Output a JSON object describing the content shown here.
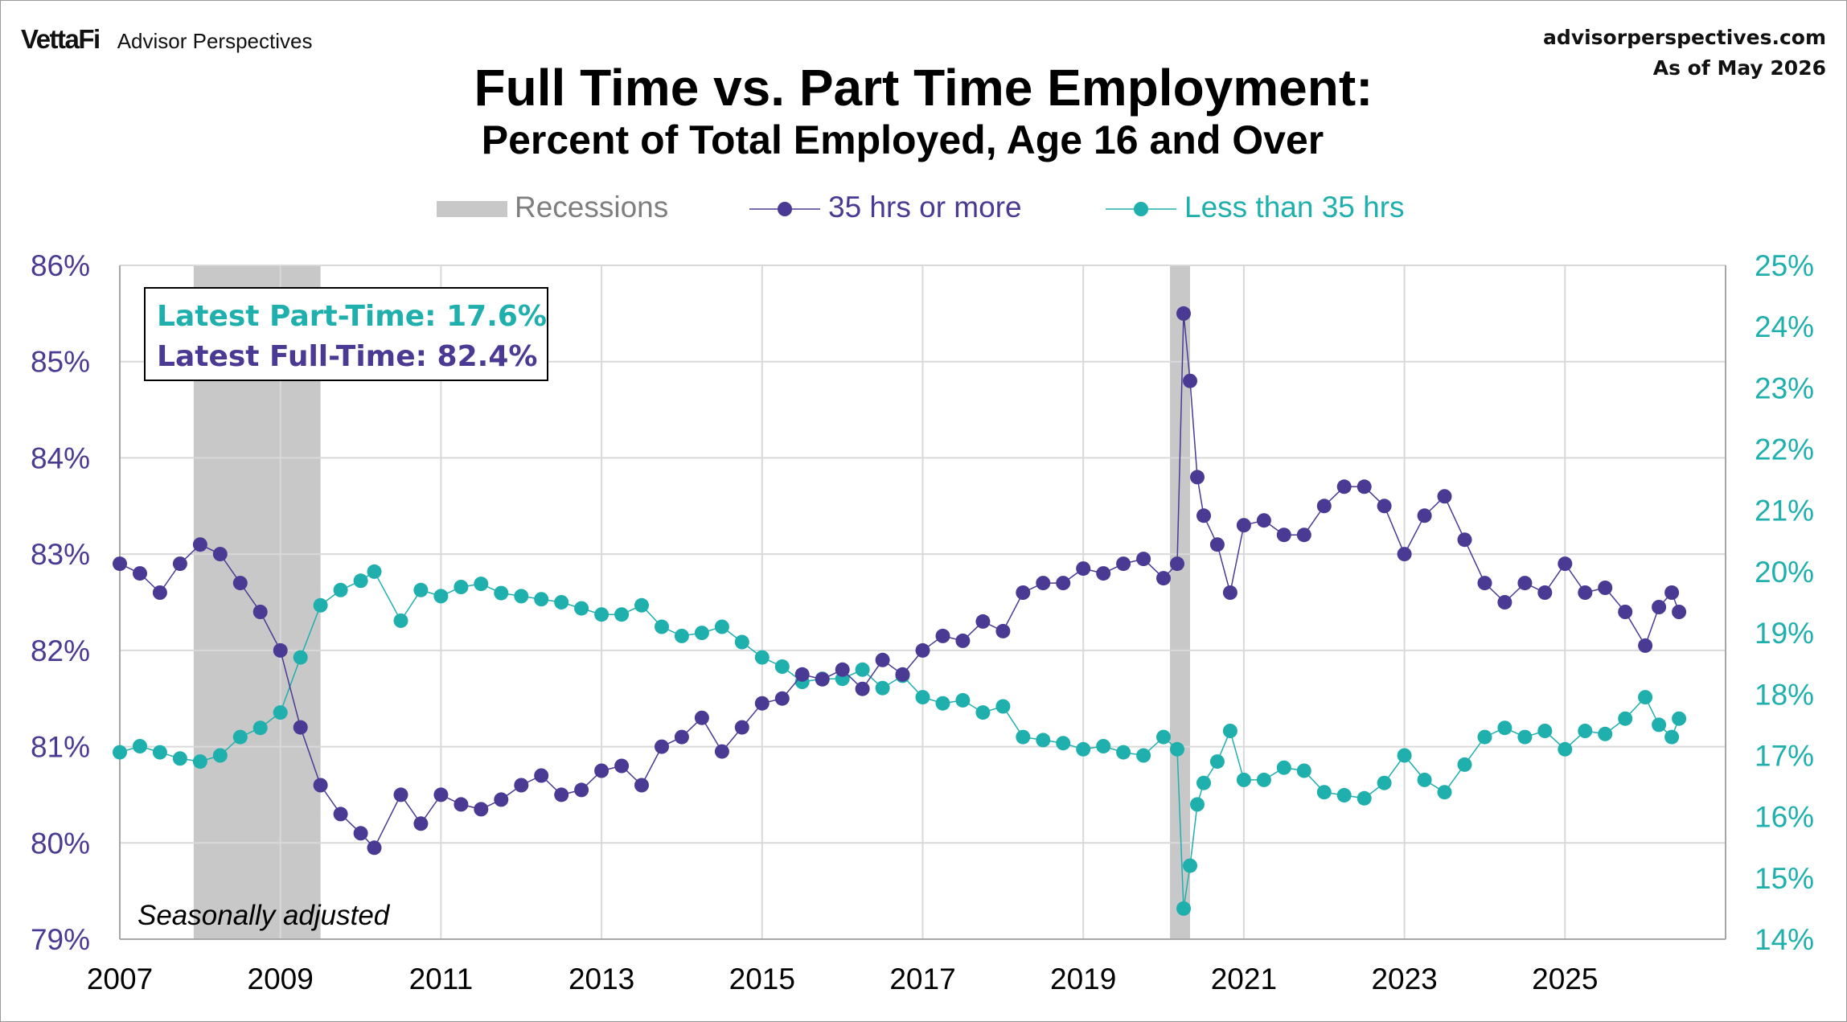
{
  "header": {
    "brand": "VettaFi",
    "brand_sub": "Advisor Perspectives",
    "site": "advisorperspectives.com",
    "as_of": "As of May 2026",
    "title": "Full Time vs. Part Time Employment:",
    "subtitle": "Percent of Total Employed, Age 16 and Over"
  },
  "annotation": {
    "latest_part_time": "Latest Part-Time: 17.6%",
    "latest_full_time": "Latest Full-Time: 82.4%",
    "note": "Seasonally adjusted"
  },
  "colors": {
    "full_time": "#4B3A94",
    "part_time": "#1FB0AE",
    "recession": "#C8C8C8",
    "grid": "#D9D9D9"
  },
  "chart_data": {
    "type": "line",
    "legend": [
      "Recessions",
      "35 hrs or more",
      "Less than 35 hrs"
    ],
    "legend_position": "top",
    "grid": true,
    "x_range": [
      2007,
      2027
    ],
    "x_ticks": [
      "2007",
      "2009",
      "2011",
      "2013",
      "2015",
      "2017",
      "2019",
      "2021",
      "2023",
      "2025"
    ],
    "y_left": {
      "range": [
        79,
        86
      ],
      "ticks": [
        "79%",
        "80%",
        "81%",
        "82%",
        "83%",
        "84%",
        "85%",
        "86%"
      ]
    },
    "y_right": {
      "range": [
        14,
        25
      ],
      "ticks": [
        "14%",
        "15%",
        "16%",
        "17%",
        "18%",
        "19%",
        "20%",
        "21%",
        "22%",
        "23%",
        "24%",
        "25%"
      ]
    },
    "recessions": [
      [
        2007.92,
        2009.5
      ],
      [
        2020.08,
        2020.33
      ]
    ],
    "series": [
      {
        "name": "35 hrs or more",
        "axis": "left",
        "points": [
          [
            2007.0,
            82.9
          ],
          [
            2007.25,
            82.8
          ],
          [
            2007.5,
            82.6
          ],
          [
            2007.75,
            82.9
          ],
          [
            2008.0,
            83.1
          ],
          [
            2008.25,
            83.0
          ],
          [
            2008.5,
            82.7
          ],
          [
            2008.75,
            82.4
          ],
          [
            2009.0,
            82.0
          ],
          [
            2009.25,
            81.2
          ],
          [
            2009.5,
            80.6
          ],
          [
            2009.75,
            80.3
          ],
          [
            2010.0,
            80.1
          ],
          [
            2010.17,
            79.95
          ],
          [
            2010.5,
            80.5
          ],
          [
            2010.75,
            80.2
          ],
          [
            2011.0,
            80.5
          ],
          [
            2011.25,
            80.4
          ],
          [
            2011.5,
            80.35
          ],
          [
            2011.75,
            80.45
          ],
          [
            2012.0,
            80.6
          ],
          [
            2012.25,
            80.7
          ],
          [
            2012.5,
            80.5
          ],
          [
            2012.75,
            80.55
          ],
          [
            2013.0,
            80.75
          ],
          [
            2013.25,
            80.8
          ],
          [
            2013.5,
            80.6
          ],
          [
            2013.75,
            81.0
          ],
          [
            2014.0,
            81.1
          ],
          [
            2014.25,
            81.3
          ],
          [
            2014.5,
            80.95
          ],
          [
            2014.75,
            81.2
          ],
          [
            2015.0,
            81.45
          ],
          [
            2015.25,
            81.5
          ],
          [
            2015.5,
            81.75
          ],
          [
            2015.75,
            81.7
          ],
          [
            2016.0,
            81.8
          ],
          [
            2016.25,
            81.6
          ],
          [
            2016.5,
            81.9
          ],
          [
            2016.75,
            81.75
          ],
          [
            2017.0,
            82.0
          ],
          [
            2017.25,
            82.15
          ],
          [
            2017.5,
            82.1
          ],
          [
            2017.75,
            82.3
          ],
          [
            2018.0,
            82.2
          ],
          [
            2018.25,
            82.6
          ],
          [
            2018.5,
            82.7
          ],
          [
            2018.75,
            82.7
          ],
          [
            2019.0,
            82.85
          ],
          [
            2019.25,
            82.8
          ],
          [
            2019.5,
            82.9
          ],
          [
            2019.75,
            82.95
          ],
          [
            2020.0,
            82.75
          ],
          [
            2020.17,
            82.9
          ],
          [
            2020.25,
            85.5
          ],
          [
            2020.33,
            84.8
          ],
          [
            2020.42,
            83.8
          ],
          [
            2020.5,
            83.4
          ],
          [
            2020.67,
            83.1
          ],
          [
            2020.83,
            82.6
          ],
          [
            2021.0,
            83.3
          ],
          [
            2021.25,
            83.35
          ],
          [
            2021.5,
            83.2
          ],
          [
            2021.75,
            83.2
          ],
          [
            2022.0,
            83.5
          ],
          [
            2022.25,
            83.7
          ],
          [
            2022.5,
            83.7
          ],
          [
            2022.75,
            83.5
          ],
          [
            2023.0,
            83.0
          ],
          [
            2023.25,
            83.4
          ],
          [
            2023.5,
            83.6
          ],
          [
            2023.75,
            83.15
          ],
          [
            2024.0,
            82.7
          ],
          [
            2024.25,
            82.5
          ],
          [
            2024.5,
            82.7
          ],
          [
            2024.75,
            82.6
          ],
          [
            2025.0,
            82.9
          ],
          [
            2025.25,
            82.6
          ],
          [
            2025.5,
            82.65
          ],
          [
            2025.75,
            82.4
          ],
          [
            2026.0,
            82.05
          ],
          [
            2026.17,
            82.45
          ],
          [
            2026.33,
            82.6
          ],
          [
            2026.42,
            82.4
          ]
        ]
      },
      {
        "name": "Less than 35 hrs",
        "axis": "right",
        "points": [
          [
            2007.0,
            17.05
          ],
          [
            2007.25,
            17.15
          ],
          [
            2007.5,
            17.05
          ],
          [
            2007.75,
            16.95
          ],
          [
            2008.0,
            16.9
          ],
          [
            2008.25,
            17.0
          ],
          [
            2008.5,
            17.3
          ],
          [
            2008.75,
            17.45
          ],
          [
            2009.0,
            17.7
          ],
          [
            2009.25,
            18.6
          ],
          [
            2009.5,
            19.45
          ],
          [
            2009.75,
            19.7
          ],
          [
            2010.0,
            19.85
          ],
          [
            2010.17,
            20.0
          ],
          [
            2010.5,
            19.2
          ],
          [
            2010.75,
            19.7
          ],
          [
            2011.0,
            19.6
          ],
          [
            2011.25,
            19.75
          ],
          [
            2011.5,
            19.8
          ],
          [
            2011.75,
            19.65
          ],
          [
            2012.0,
            19.6
          ],
          [
            2012.25,
            19.55
          ],
          [
            2012.5,
            19.5
          ],
          [
            2012.75,
            19.4
          ],
          [
            2013.0,
            19.3
          ],
          [
            2013.25,
            19.3
          ],
          [
            2013.5,
            19.45
          ],
          [
            2013.75,
            19.1
          ],
          [
            2014.0,
            18.95
          ],
          [
            2014.25,
            19.0
          ],
          [
            2014.5,
            19.1
          ],
          [
            2014.75,
            18.85
          ],
          [
            2015.0,
            18.6
          ],
          [
            2015.25,
            18.45
          ],
          [
            2015.5,
            18.2
          ],
          [
            2015.75,
            18.25
          ],
          [
            2016.0,
            18.25
          ],
          [
            2016.25,
            18.4
          ],
          [
            2016.5,
            18.1
          ],
          [
            2016.75,
            18.3
          ],
          [
            2017.0,
            17.95
          ],
          [
            2017.25,
            17.85
          ],
          [
            2017.5,
            17.9
          ],
          [
            2017.75,
            17.7
          ],
          [
            2018.0,
            17.8
          ],
          [
            2018.25,
            17.3
          ],
          [
            2018.5,
            17.25
          ],
          [
            2018.75,
            17.2
          ],
          [
            2019.0,
            17.1
          ],
          [
            2019.25,
            17.15
          ],
          [
            2019.5,
            17.05
          ],
          [
            2019.75,
            17.0
          ],
          [
            2020.0,
            17.3
          ],
          [
            2020.17,
            17.1
          ],
          [
            2020.25,
            14.5
          ],
          [
            2020.33,
            15.2
          ],
          [
            2020.42,
            16.2
          ],
          [
            2020.5,
            16.55
          ],
          [
            2020.67,
            16.9
          ],
          [
            2020.83,
            17.4
          ],
          [
            2021.0,
            16.6
          ],
          [
            2021.25,
            16.6
          ],
          [
            2021.5,
            16.8
          ],
          [
            2021.75,
            16.75
          ],
          [
            2022.0,
            16.4
          ],
          [
            2022.25,
            16.35
          ],
          [
            2022.5,
            16.3
          ],
          [
            2022.75,
            16.55
          ],
          [
            2023.0,
            17.0
          ],
          [
            2023.25,
            16.6
          ],
          [
            2023.5,
            16.4
          ],
          [
            2023.75,
            16.85
          ],
          [
            2024.0,
            17.3
          ],
          [
            2024.25,
            17.45
          ],
          [
            2024.5,
            17.3
          ],
          [
            2024.75,
            17.4
          ],
          [
            2025.0,
            17.1
          ],
          [
            2025.25,
            17.4
          ],
          [
            2025.5,
            17.35
          ],
          [
            2025.75,
            17.6
          ],
          [
            2026.0,
            17.95
          ],
          [
            2026.17,
            17.5
          ],
          [
            2026.33,
            17.3
          ],
          [
            2026.42,
            17.6
          ]
        ]
      }
    ]
  }
}
